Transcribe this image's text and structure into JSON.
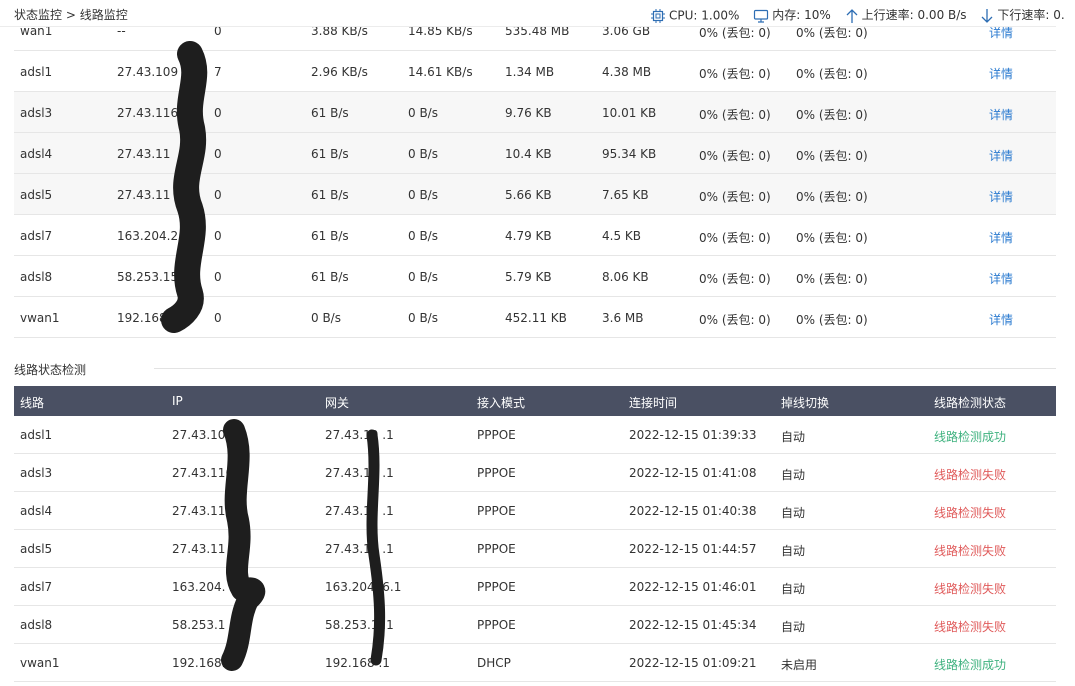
{
  "breadcrumb": {
    "parent": "状态监控",
    "sep": ">",
    "current": "线路监控"
  },
  "system": {
    "cpu_label": "CPU:",
    "cpu_value": "1.00%",
    "mem_label": "内存:",
    "mem_value": "10%",
    "up_label": "上行速率:",
    "up_value": "0.00 B/s",
    "down_label": "下行速率:",
    "down_value": "0."
  },
  "traffic_rows": [
    {
      "line": "wan1",
      "ip": "--",
      "conn": "0",
      "up": "3.88 KB/s",
      "down": "14.85 KB/s",
      "sent": "535.48 MB",
      "recv": "3.06 GB",
      "loss1": "0% (丢包: 0)",
      "loss2": "0% (丢包: 0)",
      "detail": "详情"
    },
    {
      "line": "adsl1",
      "ip": "27.43.109",
      "conn": "7",
      "up": "2.96 KB/s",
      "down": "14.61 KB/s",
      "sent": "1.34 MB",
      "recv": "4.38 MB",
      "loss1": "0% (丢包: 0)",
      "loss2": "0% (丢包: 0)",
      "detail": "详情"
    },
    {
      "line": "adsl3",
      "ip": "27.43.116",
      "conn": "0",
      "up": "61 B/s",
      "down": "0 B/s",
      "sent": "9.76 KB",
      "recv": "10.01 KB",
      "loss1": "0% (丢包: 0)",
      "loss2": "0% (丢包: 0)",
      "detail": "详情"
    },
    {
      "line": "adsl4",
      "ip": "27.43.11",
      "conn": "0",
      "up": "61 B/s",
      "down": "0 B/s",
      "sent": "10.4 KB",
      "recv": "95.34 KB",
      "loss1": "0% (丢包: 0)",
      "loss2": "0% (丢包: 0)",
      "detail": "详情"
    },
    {
      "line": "adsl5",
      "ip": "27.43.11",
      "conn": "0",
      "up": "61 B/s",
      "down": "0 B/s",
      "sent": "5.66 KB",
      "recv": "7.65 KB",
      "loss1": "0% (丢包: 0)",
      "loss2": "0% (丢包: 0)",
      "detail": "详情"
    },
    {
      "line": "adsl7",
      "ip": "163.204.2",
      "conn": "0",
      "up": "61 B/s",
      "down": "0 B/s",
      "sent": "4.79 KB",
      "recv": "4.5 KB",
      "loss1": "0% (丢包: 0)",
      "loss2": "0% (丢包: 0)",
      "detail": "详情"
    },
    {
      "line": "adsl8",
      "ip": "58.253.15",
      "conn": "0",
      "up": "61 B/s",
      "down": "0 B/s",
      "sent": "5.79 KB",
      "recv": "8.06 KB",
      "loss1": "0% (丢包: 0)",
      "loss2": "0% (丢包: 0)",
      "detail": "详情"
    },
    {
      "line": "vwan1",
      "ip": "192.168.",
      "conn": "0",
      "up": "0 B/s",
      "down": "0 B/s",
      "sent": "452.11 KB",
      "recv": "3.6 MB",
      "loss1": "0% (丢包: 0)",
      "loss2": "0% (丢包: 0)",
      "detail": "详情"
    }
  ],
  "status_section": {
    "title": "线路状态检测",
    "headers": [
      "线路",
      "IP",
      "网关",
      "接入模式",
      "连接时间",
      "掉线切换",
      "线路检测状态"
    ],
    "rows": [
      {
        "line": "adsl1",
        "ip": "27.43.10",
        "gw": "27.43.10  .1",
        "mode": "PPPOE",
        "time": "2022-12-15 01:39:33",
        "switch": "自动",
        "state": "线路检测成功",
        "ok": true
      },
      {
        "line": "adsl3",
        "ip": "27.43.116",
        "gw": "27.43.11  .1",
        "mode": "PPPOE",
        "time": "2022-12-15 01:41:08",
        "switch": "自动",
        "state": "线路检测失败",
        "ok": false
      },
      {
        "line": "adsl4",
        "ip": "27.43.11",
        "gw": "27.43.10  .1",
        "mode": "PPPOE",
        "time": "2022-12-15 01:40:38",
        "switch": "自动",
        "state": "线路检测失败",
        "ok": false
      },
      {
        "line": "adsl5",
        "ip": "27.43.11",
        "gw": "27.43.11  .1",
        "mode": "PPPOE",
        "time": "2022-12-15 01:44:57",
        "switch": "自动",
        "state": "线路检测失败",
        "ok": false
      },
      {
        "line": "adsl7",
        "ip": "163.204.",
        "gw": "163.204.  6.1",
        "mode": "PPPOE",
        "time": "2022-12-15 01:46:01",
        "switch": "自动",
        "state": "线路检测失败",
        "ok": false
      },
      {
        "line": "adsl8",
        "ip": "58.253.1",
        "gw": "58.253.1  .1",
        "mode": "PPPOE",
        "time": "2022-12-15 01:45:34",
        "switch": "自动",
        "state": "线路检测失败",
        "ok": false
      },
      {
        "line": "vwan1",
        "ip": "192.168.",
        "gw": "192.168  .1",
        "mode": "DHCP",
        "time": "2022-12-15 01:09:21",
        "switch": "未启用",
        "state": "线路检测成功",
        "ok": true
      }
    ]
  }
}
